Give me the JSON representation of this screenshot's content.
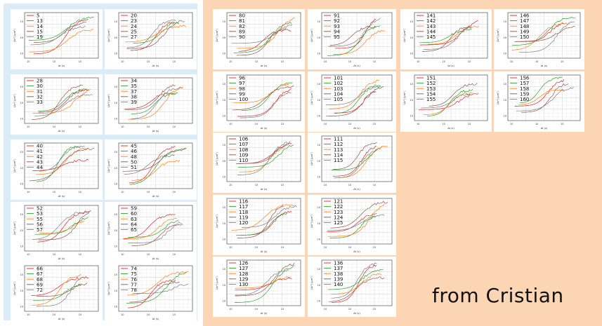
{
  "credit": "from Cristian",
  "colors": {
    "left_background": "#d9ecf7",
    "right_background": "#fbd5b4",
    "series": [
      "#d62728",
      "#2ca02c",
      "#ff7f0e",
      "#8c564b",
      "#7f7f7f"
    ]
  },
  "chart_data": [
    {
      "type": "line",
      "group": "left",
      "legend": [
        "5",
        "13",
        "14",
        "15",
        "19"
      ]
    },
    {
      "type": "line",
      "group": "left",
      "legend": [
        "20",
        "23",
        "24",
        "25",
        "27"
      ]
    },
    {
      "type": "line",
      "group": "left",
      "legend": [
        "28",
        "30",
        "31",
        "32",
        "33"
      ]
    },
    {
      "type": "line",
      "group": "left",
      "legend": [
        "34",
        "35",
        "37",
        "38",
        "39"
      ]
    },
    {
      "type": "line",
      "group": "left",
      "legend": [
        "40",
        "41",
        "42",
        "43",
        "44"
      ]
    },
    {
      "type": "line",
      "group": "left",
      "legend": [
        "45",
        "46",
        "48",
        "50",
        "51"
      ]
    },
    {
      "type": "line",
      "group": "left",
      "legend": [
        "52",
        "53",
        "55",
        "56",
        "57"
      ]
    },
    {
      "type": "line",
      "group": "left",
      "legend": [
        "59",
        "60",
        "63",
        "64",
        "65"
      ]
    },
    {
      "type": "line",
      "group": "left",
      "legend": [
        "66",
        "67",
        "68",
        "69",
        "72"
      ]
    },
    {
      "type": "line",
      "group": "left",
      "legend": [
        "74",
        "75",
        "76",
        "77",
        "78"
      ]
    },
    {
      "type": "line",
      "group": "right",
      "legend": [
        "80",
        "81",
        "82",
        "89",
        "90"
      ]
    },
    {
      "type": "line",
      "group": "right",
      "legend": [
        "91",
        "92",
        "93",
        "94",
        "95"
      ]
    },
    {
      "type": "line",
      "group": "right",
      "legend": [
        "141",
        "142",
        "143",
        "144",
        "145"
      ]
    },
    {
      "type": "line",
      "group": "right",
      "legend": [
        "146",
        "147",
        "148",
        "149",
        "150"
      ]
    },
    {
      "type": "line",
      "group": "right",
      "legend": [
        "96",
        "97",
        "98",
        "99",
        "100"
      ]
    },
    {
      "type": "line",
      "group": "right",
      "legend": [
        "101",
        "102",
        "103",
        "104",
        "105"
      ]
    },
    {
      "type": "line",
      "group": "right",
      "legend": [
        "151",
        "152",
        "153",
        "154",
        "155"
      ]
    },
    {
      "type": "line",
      "group": "right",
      "legend": [
        "156",
        "157",
        "158",
        "159",
        "160"
      ]
    },
    {
      "type": "line",
      "group": "right",
      "legend": [
        "106",
        "107",
        "108",
        "109",
        "110"
      ]
    },
    {
      "type": "line",
      "group": "right",
      "legend": [
        "111",
        "112",
        "113",
        "114",
        "115"
      ]
    },
    {
      "type": "line",
      "group": "right",
      "legend": [
        "116",
        "117",
        "118",
        "119",
        "120"
      ]
    },
    {
      "type": "line",
      "group": "right",
      "legend": [
        "121",
        "122",
        "123",
        "124",
        "125"
      ]
    },
    {
      "type": "line",
      "group": "right",
      "legend": [
        "126",
        "127",
        "128",
        "129",
        "130"
      ]
    },
    {
      "type": "line",
      "group": "right",
      "legend": [
        "136",
        "137",
        "138",
        "139",
        "140"
      ]
    }
  ]
}
